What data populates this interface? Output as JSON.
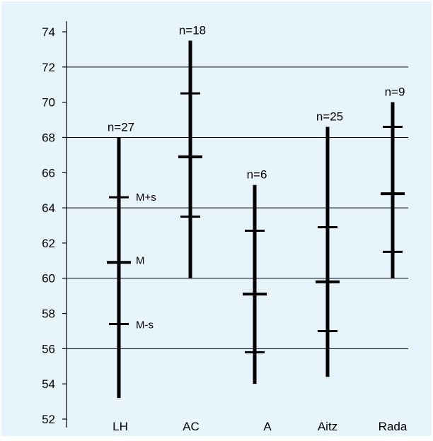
{
  "colors": {
    "background": "#e8f4fb",
    "axis": "#000000",
    "gridline": "#000000",
    "bar": "#000000"
  },
  "chart_data": {
    "type": "range",
    "title": "",
    "xlabel": "",
    "ylabel": "",
    "ylim": [
      52,
      75
    ],
    "yticks": [
      52,
      54,
      56,
      58,
      60,
      62,
      64,
      66,
      68,
      70,
      72,
      74
    ],
    "gridlines_at": [
      56,
      60,
      64,
      68,
      72
    ],
    "categories": [
      "LH",
      "AC",
      "A",
      "Aitz",
      "Rada"
    ],
    "series": [
      {
        "category": "LH",
        "n_label": "n=27",
        "min": 53.2,
        "max": 68.0,
        "mean_minus_sd": 57.4,
        "mean": 60.9,
        "mean_plus_sd": 64.6
      },
      {
        "category": "AC",
        "n_label": "n=18",
        "min": 60.0,
        "max": 73.5,
        "mean_minus_sd": 63.5,
        "mean": 66.9,
        "mean_plus_sd": 70.5
      },
      {
        "category": "A",
        "n_label": "n=6",
        "min": 54.0,
        "max": 65.3,
        "mean_minus_sd": 55.8,
        "mean": 59.1,
        "mean_plus_sd": 62.7
      },
      {
        "category": "Aitz",
        "n_label": "n=25",
        "min": 54.4,
        "max": 68.6,
        "mean_minus_sd": 57.0,
        "mean": 59.8,
        "mean_plus_sd": 62.9
      },
      {
        "category": "Rada",
        "n_label": "n=9",
        "min": 60.0,
        "max": 70.0,
        "mean_minus_sd": 61.5,
        "mean": 64.8,
        "mean_plus_sd": 68.6
      }
    ],
    "annotations": {
      "plus_sd": "M+s",
      "mean": "M",
      "minus_sd": "M-s"
    },
    "annotation_category": "LH"
  }
}
